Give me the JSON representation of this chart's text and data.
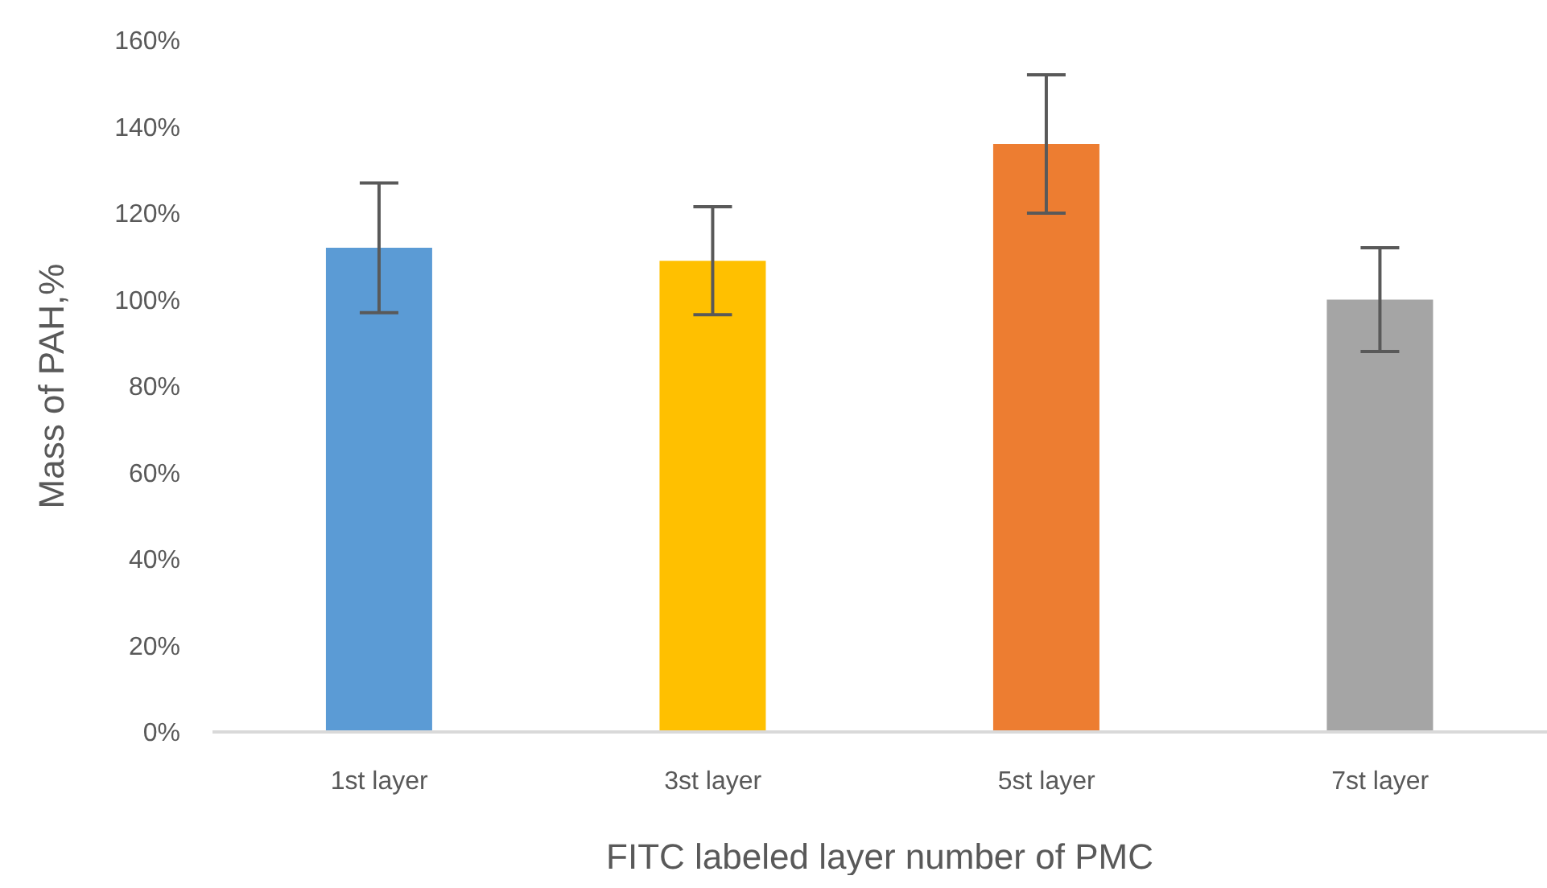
{
  "chart_data": {
    "type": "bar",
    "xlabel": "FITC labeled layer number of PMC",
    "ylabel": "Mass of PAH,%",
    "categories": [
      "1st layer",
      "3st layer",
      "5st layer",
      "7st layer"
    ],
    "values": [
      112,
      109,
      136,
      100
    ],
    "errors": [
      15,
      12.5,
      16,
      12
    ],
    "colors": [
      "#5b9bd5",
      "#ffc000",
      "#ed7d31",
      "#a5a5a5"
    ],
    "ylim": [
      0,
      160
    ],
    "yticks": [
      {
        "value": 0,
        "label": "0%"
      },
      {
        "value": 20,
        "label": "20%"
      },
      {
        "value": 40,
        "label": "40%"
      },
      {
        "value": 60,
        "label": "60%"
      },
      {
        "value": 80,
        "label": "80%"
      },
      {
        "value": 100,
        "label": "100%"
      },
      {
        "value": 120,
        "label": "120%"
      },
      {
        "value": 140,
        "label": "140%"
      },
      {
        "value": 160,
        "label": "160%"
      }
    ],
    "grid": false,
    "legend": false
  }
}
